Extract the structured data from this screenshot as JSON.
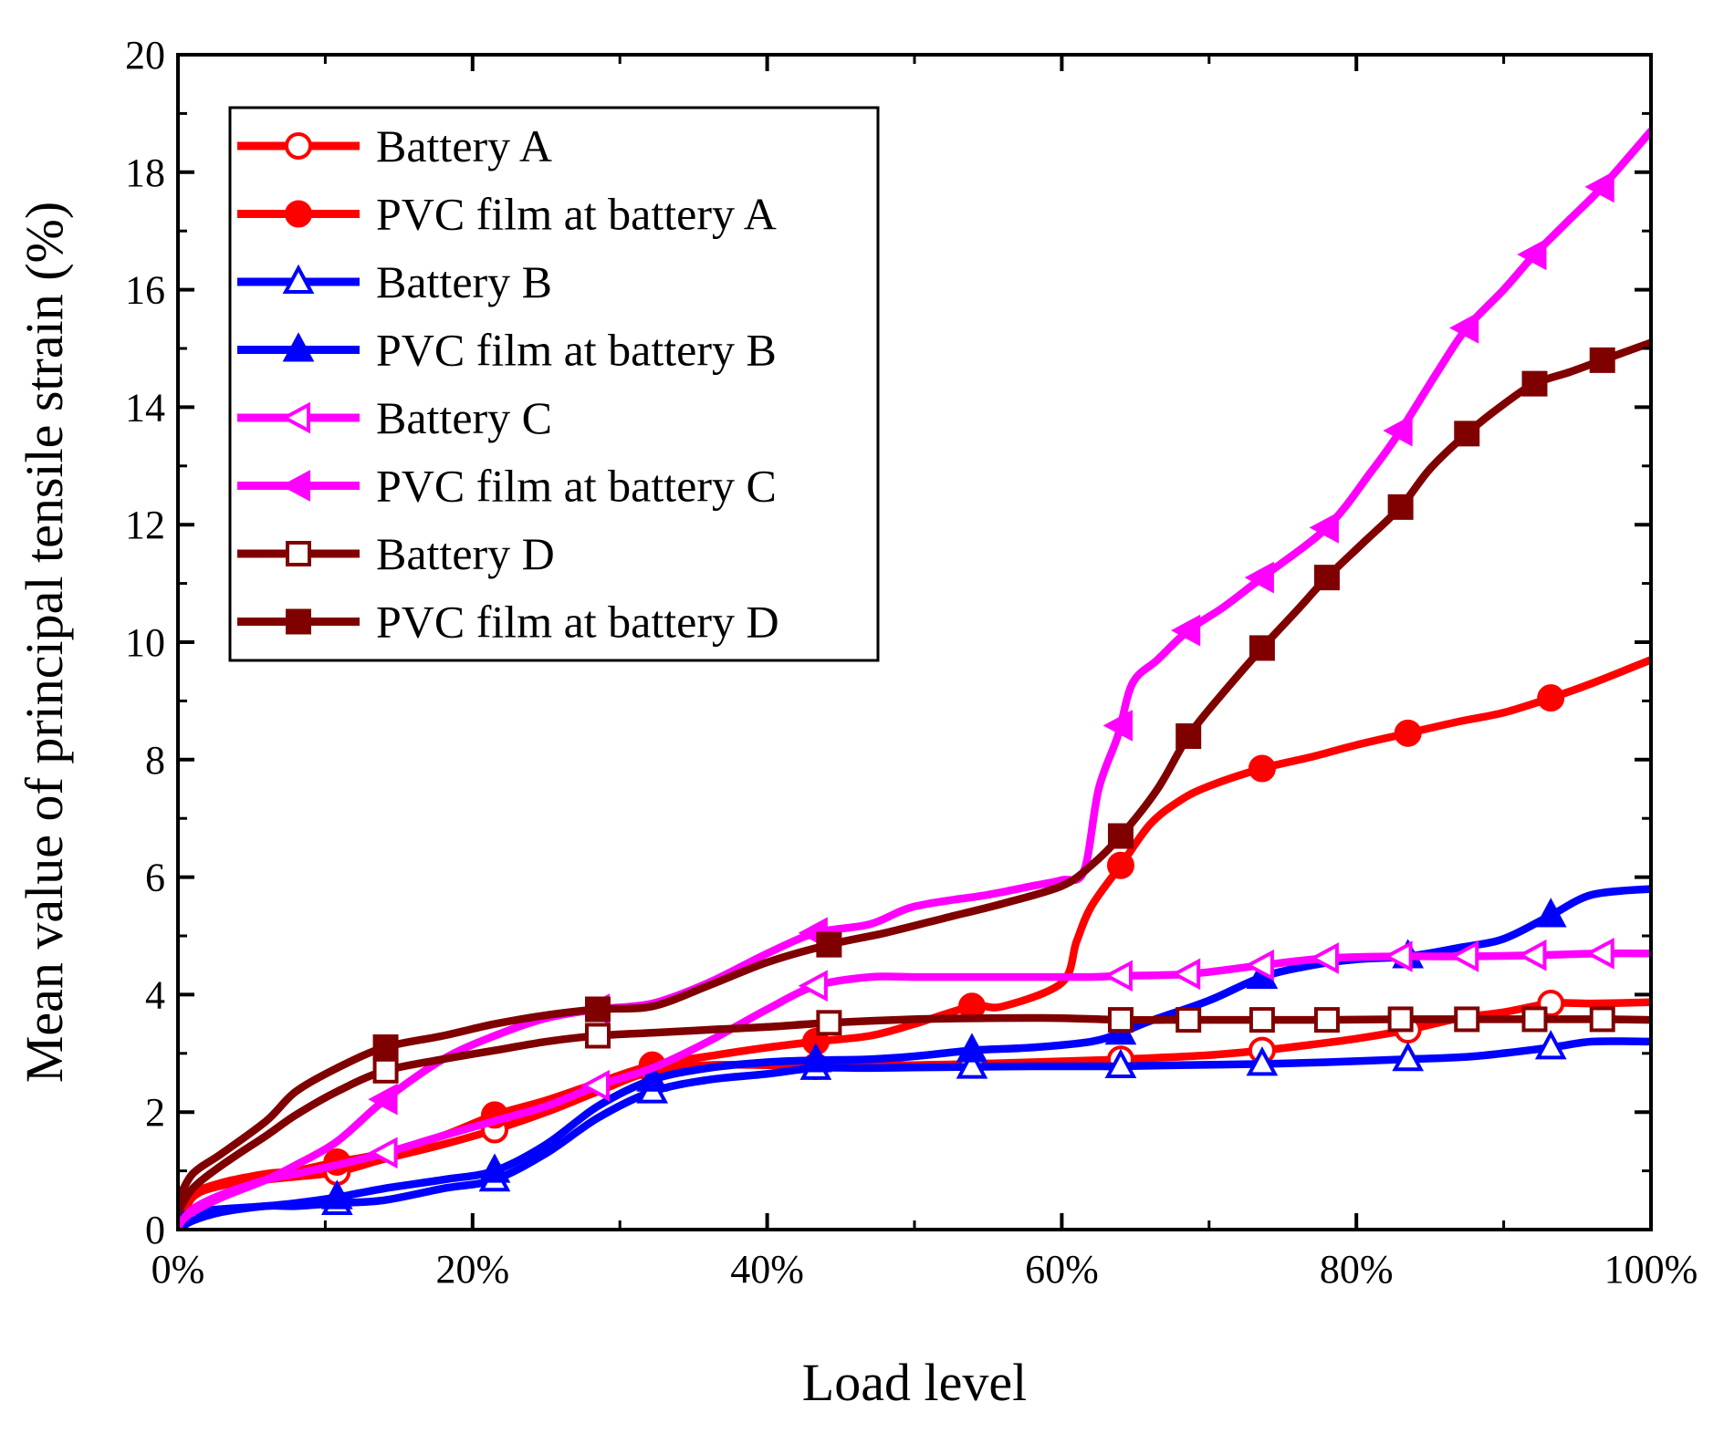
{
  "chart_data": {
    "type": "line",
    "xlabel": "Load level",
    "ylabel": "Mean value of principal tensile strain (%)",
    "xlim": [
      0,
      100
    ],
    "ylim": [
      0,
      20
    ],
    "x_ticks": [
      0,
      20,
      40,
      60,
      80,
      100
    ],
    "x_tick_labels": [
      "0%",
      "20%",
      "40%",
      "60%",
      "80%",
      "100%"
    ],
    "y_ticks": [
      0,
      2,
      4,
      6,
      8,
      10,
      12,
      14,
      16,
      18,
      20
    ],
    "y_tick_labels": [
      "0",
      "2",
      "4",
      "6",
      "8",
      "10",
      "12",
      "14",
      "16",
      "18",
      "20"
    ],
    "grid": false,
    "legend_position": "top-left",
    "series": [
      {
        "name": "Battery A",
        "color": "#ff0000",
        "marker": "circle-open",
        "x": [
          0,
          1,
          3,
          6,
          8,
          10.8,
          14,
          18,
          21.5,
          25,
          28.5,
          32.2,
          36,
          40,
          43.3,
          47,
          50,
          53.9,
          58,
          62,
          64,
          66,
          70,
          73.6,
          77,
          80,
          83.5,
          87,
          90,
          93.2,
          96,
          100
        ],
        "values": [
          0,
          0.55,
          0.75,
          0.85,
          0.9,
          0.98,
          1.2,
          1.45,
          1.7,
          2.0,
          2.35,
          2.7,
          2.8,
          2.8,
          2.78,
          2.8,
          2.8,
          2.82,
          2.85,
          2.88,
          2.9,
          2.92,
          2.97,
          3.05,
          3.15,
          3.25,
          3.4,
          3.6,
          3.7,
          3.85,
          3.85,
          3.87
        ]
      },
      {
        "name": "PVC film at battery A",
        "color": "#ff0000",
        "marker": "circle-filled",
        "x": [
          0,
          1,
          3,
          6,
          8,
          10.8,
          14,
          18,
          21.5,
          25,
          28.5,
          32.2,
          36,
          40,
          43.3,
          47,
          50,
          53.9,
          56,
          60,
          61,
          62,
          64,
          66,
          68,
          70,
          73.6,
          77,
          80,
          83.5,
          87,
          90,
          93.2,
          96,
          100
        ],
        "values": [
          0.2,
          0.6,
          0.8,
          0.95,
          1.0,
          1.15,
          1.3,
          1.6,
          1.95,
          2.2,
          2.5,
          2.8,
          2.95,
          3.1,
          3.2,
          3.3,
          3.5,
          3.8,
          3.8,
          4.2,
          4.9,
          5.5,
          6.2,
          6.9,
          7.3,
          7.55,
          7.85,
          8.05,
          8.25,
          8.45,
          8.65,
          8.8,
          9.05,
          9.3,
          9.7
        ]
      },
      {
        "name": "Battery B",
        "color": "#0000ff",
        "marker": "triangle-up-open",
        "x": [
          0,
          1,
          3,
          6,
          8,
          10.8,
          14,
          18,
          21.5,
          25,
          28.5,
          32.2,
          36,
          40,
          43.3,
          47,
          50,
          53.9,
          58,
          62,
          64,
          68,
          73.6,
          78,
          83.5,
          88,
          93.2,
          96,
          100
        ],
        "values": [
          0,
          0.15,
          0.3,
          0.4,
          0.4,
          0.45,
          0.5,
          0.7,
          0.85,
          1.3,
          1.9,
          2.35,
          2.55,
          2.65,
          2.75,
          2.75,
          2.76,
          2.77,
          2.78,
          2.78,
          2.78,
          2.8,
          2.82,
          2.85,
          2.9,
          2.95,
          3.1,
          3.2,
          3.2
        ]
      },
      {
        "name": "PVC film at battery B",
        "color": "#0000ff",
        "marker": "triangle-up-filled",
        "x": [
          0,
          1,
          3,
          6,
          8,
          10.8,
          14,
          18,
          21.5,
          25,
          28.5,
          32.2,
          36,
          40,
          43.3,
          47,
          50,
          53.9,
          58,
          62,
          64,
          66,
          70,
          73.6,
          77,
          80,
          83.5,
          87,
          90,
          93.2,
          96,
          100
        ],
        "values": [
          0.2,
          0.3,
          0.35,
          0.4,
          0.45,
          0.55,
          0.7,
          0.85,
          1.0,
          1.45,
          2.1,
          2.55,
          2.75,
          2.85,
          2.88,
          2.9,
          2.95,
          3.05,
          3.1,
          3.2,
          3.35,
          3.55,
          3.9,
          4.3,
          4.5,
          4.6,
          4.65,
          4.8,
          4.95,
          5.35,
          5.7,
          5.8
        ]
      },
      {
        "name": "Battery C",
        "color": "#ff00ff",
        "marker": "triangle-left-open",
        "x": [
          0,
          1,
          3,
          6,
          8,
          10.8,
          14,
          18,
          21.5,
          25,
          28.5,
          32.2,
          36,
          40,
          43.3,
          47,
          50,
          53.9,
          58,
          62,
          64,
          68.6,
          73.6,
          78,
          83,
          87.5,
          92.1,
          96.7,
          100
        ],
        "values": [
          0.05,
          0.35,
          0.6,
          0.85,
          0.95,
          1.1,
          1.3,
          1.6,
          1.85,
          2.1,
          2.45,
          2.75,
          3.2,
          3.75,
          4.15,
          4.3,
          4.3,
          4.3,
          4.3,
          4.3,
          4.32,
          4.35,
          4.5,
          4.62,
          4.65,
          4.65,
          4.67,
          4.7,
          4.7
        ]
      },
      {
        "name": "PVC film at battery C",
        "color": "#ff00ff",
        "marker": "triangle-left-filled",
        "x": [
          0,
          1,
          3,
          6,
          8,
          10.8,
          14,
          18,
          21.5,
          25,
          28.5,
          32.2,
          36,
          40,
          43.3,
          47,
          50,
          55,
          58,
          60,
          61.5,
          62.5,
          63.8,
          64.8,
          66.5,
          68.6,
          71,
          73.6,
          78,
          81,
          83,
          85.5,
          87.5,
          90,
          92.1,
          94.5,
          96.7,
          100
        ],
        "values": [
          0.1,
          0.3,
          0.55,
          0.85,
          1.1,
          1.5,
          2.2,
          2.9,
          3.3,
          3.6,
          3.75,
          3.85,
          4.2,
          4.7,
          5.05,
          5.2,
          5.5,
          5.7,
          5.85,
          5.95,
          6.1,
          7.5,
          8.4,
          9.3,
          9.7,
          10.2,
          10.6,
          11.1,
          11.95,
          12.9,
          13.6,
          14.6,
          15.35,
          16.0,
          16.6,
          17.2,
          17.75,
          18.7
        ]
      },
      {
        "name": "Battery D",
        "color": "#800000",
        "marker": "square-open",
        "x": [
          0,
          1,
          3,
          6,
          8,
          10.8,
          14,
          18,
          21.5,
          25,
          28.5,
          32.2,
          36,
          40,
          44.2,
          50,
          55,
          60,
          64,
          68.6,
          73.6,
          78,
          83,
          87.5,
          92.1,
          96.7,
          100
        ],
        "values": [
          0.3,
          0.7,
          1.1,
          1.6,
          1.95,
          2.35,
          2.7,
          2.9,
          3.05,
          3.2,
          3.3,
          3.35,
          3.4,
          3.45,
          3.52,
          3.58,
          3.6,
          3.6,
          3.57,
          3.57,
          3.57,
          3.57,
          3.58,
          3.58,
          3.58,
          3.58,
          3.57
        ]
      },
      {
        "name": "PVC film at battery D",
        "color": "#800000",
        "marker": "square-filled",
        "x": [
          0,
          1,
          3,
          6,
          8,
          10.8,
          14,
          18,
          21.5,
          25,
          28.5,
          32.2,
          36,
          40,
          44.2,
          48,
          52,
          56,
          60,
          62,
          64,
          66.5,
          68.6,
          71,
          73.6,
          76,
          78,
          80.5,
          83,
          85,
          87.5,
          90,
          92.1,
          94.5,
          96.7,
          100
        ],
        "values": [
          0.5,
          0.95,
          1.3,
          1.85,
          2.35,
          2.75,
          3.1,
          3.3,
          3.5,
          3.65,
          3.75,
          3.8,
          4.15,
          4.55,
          4.85,
          5.05,
          5.3,
          5.55,
          5.85,
          6.2,
          6.7,
          7.5,
          8.4,
          9.15,
          9.9,
          10.55,
          11.1,
          11.7,
          12.3,
          12.95,
          13.55,
          14.05,
          14.4,
          14.6,
          14.8,
          15.1
        ]
      }
    ]
  }
}
